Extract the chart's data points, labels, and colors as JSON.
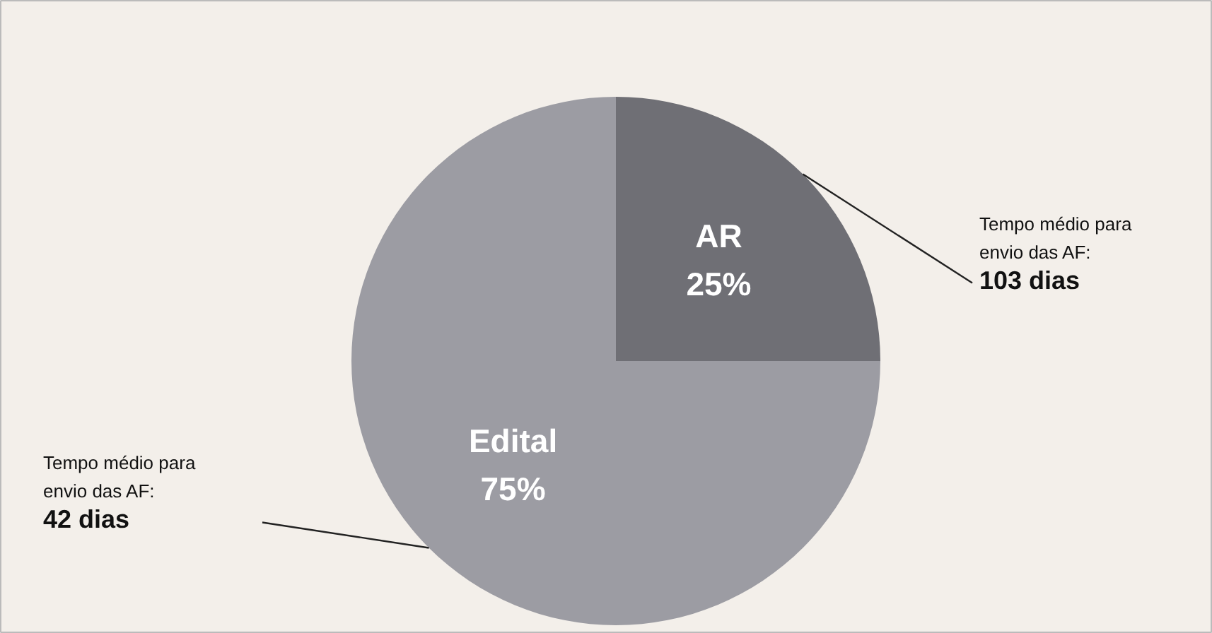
{
  "chart_data": {
    "type": "pie",
    "categories": [
      "AR",
      "Edital"
    ],
    "values": [
      25,
      75
    ],
    "colors": [
      "#6f6f75",
      "#9c9ca3"
    ],
    "value_labels": [
      "25%",
      "75%"
    ],
    "annotations": [
      "Tempo médio para\nenvio das AF:\n103 dias",
      "Tempo médio para\nenvio das AF:\n42 dias"
    ]
  }
}
